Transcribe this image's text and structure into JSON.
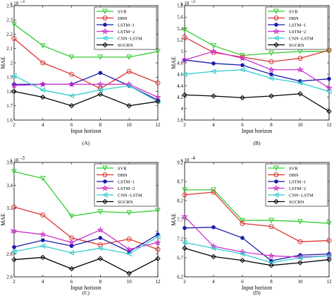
{
  "chart_data": [
    {
      "type": "line",
      "panel_label": "(A)",
      "xlabel": "Input horizon",
      "ylabel": "MAE",
      "exponent_label": "x 10",
      "exponent_power": "-3",
      "x": [
        2,
        4,
        6,
        8,
        10,
        12
      ],
      "xlim": [
        2,
        12
      ],
      "ylim": [
        1.6,
        2.4
      ],
      "yticks": [
        1.6,
        1.7,
        1.8,
        1.9,
        2.0,
        2.1,
        2.2,
        2.3,
        2.4
      ],
      "ytick_labels": [
        "1.6",
        "1.7",
        "1.8",
        "1.9",
        "2",
        "2.1",
        "2.2",
        "2.3",
        "2.4"
      ],
      "legend_position": "top-right",
      "series": [
        {
          "name": "SVR",
          "color": "#33cc33",
          "marker": "triangle-down",
          "values": [
            2.27,
            2.12,
            2.04,
            2.04,
            2.04,
            2.08
          ]
        },
        {
          "name": "DBN",
          "color": "#dd3333",
          "marker": "circle",
          "values": [
            2.17,
            2.0,
            1.92,
            1.82,
            1.94,
            1.86
          ]
        },
        {
          "name": "LSTM−1",
          "color": "#1a1aaa",
          "marker": "dot",
          "values": [
            1.85,
            1.85,
            1.85,
            1.93,
            1.84,
            1.74
          ]
        },
        {
          "name": "LSTM−2",
          "color": "#cc33cc",
          "marker": "star",
          "values": [
            1.84,
            1.85,
            1.85,
            1.85,
            1.85,
            1.76
          ]
        },
        {
          "name": "CNN−LSTM",
          "color": "#33cccc",
          "marker": "triangle-left",
          "values": [
            1.91,
            1.81,
            1.77,
            1.81,
            1.84,
            1.73
          ]
        },
        {
          "name": "SGCRN",
          "color": "#000000",
          "marker": "diamond",
          "values": [
            1.8,
            1.76,
            1.7,
            1.78,
            1.7,
            1.73
          ]
        }
      ]
    },
    {
      "type": "line",
      "panel_label": "(B)",
      "xlabel": "Input horizon",
      "ylabel": "MAE",
      "exponent_label": "x 10",
      "exponent_power": "-3",
      "x": [
        2,
        4,
        6,
        8,
        10,
        12
      ],
      "xlim": [
        2,
        12
      ],
      "ylim": [
        3.8,
        5.8
      ],
      "yticks": [
        3.8,
        4.0,
        4.2,
        4.4,
        4.6,
        4.8,
        5.0,
        5.2,
        5.4,
        5.6,
        5.8
      ],
      "ytick_labels": [
        "3.8",
        "4",
        "4.2",
        "4.4",
        "4.6",
        "4.8",
        "5",
        "5.2",
        "5.4",
        "5.6",
        "5.8"
      ],
      "legend_position": "top-right",
      "series": [
        {
          "name": "SVR",
          "color": "#33cc33",
          "marker": "triangle-down",
          "values": [
            5.38,
            5.1,
            4.93,
            4.97,
            5.0,
            5.0
          ]
        },
        {
          "name": "DBN",
          "color": "#dd3333",
          "marker": "circle",
          "values": [
            5.25,
            4.98,
            4.9,
            4.82,
            4.88,
            5.02
          ]
        },
        {
          "name": "LSTM−1",
          "color": "#1a1aaa",
          "marker": "dot",
          "values": [
            4.85,
            4.79,
            4.76,
            4.6,
            4.48,
            4.52
          ]
        },
        {
          "name": "LSTM−2",
          "color": "#cc33cc",
          "marker": "star",
          "values": [
            4.85,
            5.0,
            4.88,
            4.68,
            4.68,
            4.36
          ]
        },
        {
          "name": "CNN−LSTM",
          "color": "#33cccc",
          "marker": "triangle-left",
          "values": [
            4.6,
            4.65,
            4.68,
            4.53,
            4.45,
            4.3
          ]
        },
        {
          "name": "SGCRN",
          "color": "#000000",
          "marker": "diamond",
          "values": [
            4.24,
            4.22,
            4.19,
            4.22,
            4.26,
            3.95
          ]
        }
      ]
    },
    {
      "type": "line",
      "panel_label": "(C)",
      "xlabel": "Input horizon",
      "ylabel": "MAE",
      "exponent_label": "x 10",
      "exponent_power": "-3",
      "x": [
        2,
        4,
        6,
        8,
        10,
        12
      ],
      "xlim": [
        2,
        12
      ],
      "ylim": [
        2.6,
        3.6
      ],
      "yticks": [
        2.6,
        2.8,
        3.0,
        3.2,
        3.4,
        3.6
      ],
      "ytick_labels": [
        "2.6",
        "2.8",
        "3",
        "3.2",
        "3.4",
        "3.6"
      ],
      "legend_position": "top-right",
      "series": [
        {
          "name": "SVR",
          "color": "#33cc33",
          "marker": "triangle-down",
          "values": [
            3.52,
            3.46,
            3.13,
            3.17,
            3.16,
            3.18
          ]
        },
        {
          "name": "DBN",
          "color": "#dd3333",
          "marker": "circle",
          "values": [
            3.21,
            3.14,
            2.94,
            2.88,
            2.93,
            2.84
          ]
        },
        {
          "name": "LSTM−1",
          "color": "#1a1aaa",
          "marker": "dot",
          "values": [
            2.86,
            2.92,
            2.87,
            2.94,
            2.82,
            2.97
          ]
        },
        {
          "name": "LSTM−2",
          "color": "#cc33cc",
          "marker": "star",
          "values": [
            3.0,
            2.97,
            2.9,
            3.01,
            2.84,
            2.9
          ]
        },
        {
          "name": "CNN−LSTM",
          "color": "#33cccc",
          "marker": "triangle-left",
          "values": [
            2.82,
            2.87,
            2.81,
            2.85,
            2.8,
            2.95
          ]
        },
        {
          "name": "SGCRN",
          "color": "#000000",
          "marker": "diamond",
          "values": [
            2.75,
            2.77,
            2.67,
            2.76,
            2.63,
            2.76
          ]
        }
      ]
    },
    {
      "type": "line",
      "panel_label": "(D)",
      "xlabel": "Input horizon",
      "ylabel": "MAE",
      "exponent_label": "x 10",
      "exponent_power": "-4",
      "x": [
        2,
        4,
        6,
        8,
        10,
        12
      ],
      "xlim": [
        2,
        12
      ],
      "ylim": [
        6.2,
        9.2
      ],
      "yticks": [
        6.2,
        6.7,
        7.2,
        7.7,
        8.2,
        8.7,
        9.2
      ],
      "ytick_labels": [
        "6.2",
        "6.7",
        "7.2",
        "7.7",
        "8.2",
        "8.7",
        "9.2"
      ],
      "legend_position": "top-right",
      "series": [
        {
          "name": "SVR",
          "color": "#33cc33",
          "marker": "triangle-down",
          "values": [
            8.48,
            8.48,
            7.68,
            7.68,
            7.65,
            7.6
          ]
        },
        {
          "name": "DBN",
          "color": "#dd3333",
          "marker": "circle",
          "values": [
            8.35,
            8.42,
            7.6,
            7.52,
            7.12,
            7.15
          ]
        },
        {
          "name": "LSTM−1",
          "color": "#1a1aaa",
          "marker": "dot",
          "values": [
            7.48,
            7.5,
            7.22,
            6.62,
            6.77,
            6.8
          ]
        },
        {
          "name": "LSTM−2",
          "color": "#cc33cc",
          "marker": "star",
          "values": [
            7.78,
            7.0,
            6.85,
            6.75,
            6.72,
            6.75
          ]
        },
        {
          "name": "CNN−LSTM",
          "color": "#33cccc",
          "marker": "triangle-left",
          "values": [
            7.1,
            6.95,
            6.8,
            6.57,
            6.7,
            6.75
          ]
        },
        {
          "name": "SGCRN",
          "color": "#000000",
          "marker": "diamond",
          "values": [
            6.95,
            6.73,
            6.63,
            6.5,
            6.57,
            6.65
          ]
        }
      ]
    }
  ]
}
